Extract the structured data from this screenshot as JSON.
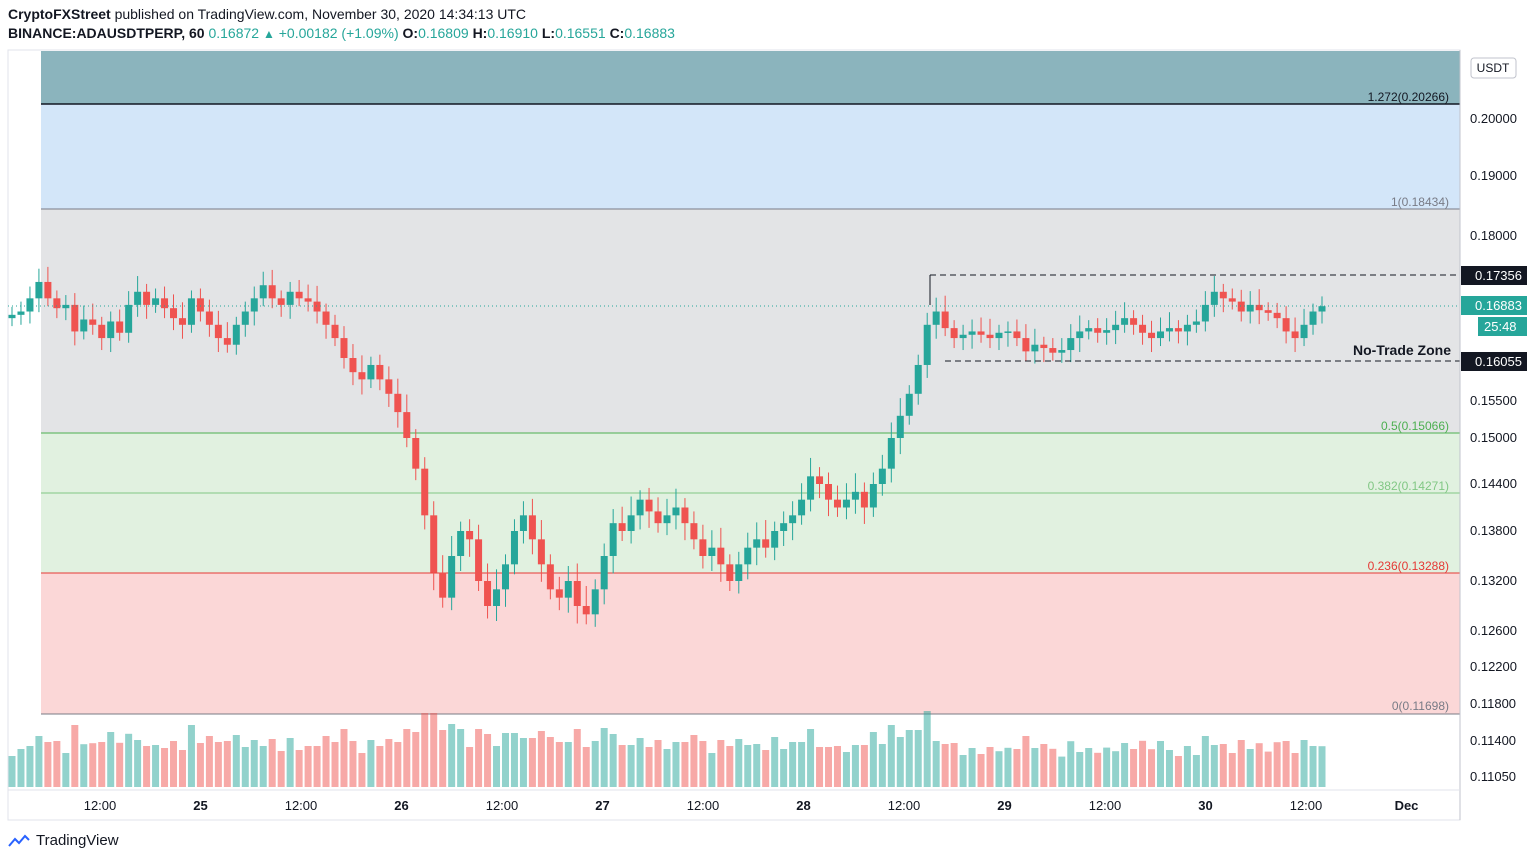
{
  "header": {
    "publisher": "CryptoFXStreet",
    "published_text": "published on TradingView.com, November 30, 2020 14:34:13 UTC",
    "symbol": "BINANCE:ADAUSDTPERP, 60",
    "last": "0.16872",
    "change": "+0.00182 (+1.09%)",
    "o_label": "O:",
    "o": "0.16809",
    "h_label": "H:",
    "h": "0.16910",
    "l_label": "L:",
    "l": "0.16551",
    "c_label": "C:",
    "c": "0.16883"
  },
  "footer": {
    "brand": "TradingView"
  },
  "colors": {
    "up": "#26a69a",
    "down": "#ef5350",
    "zone_top": "#8bb4bd",
    "zone_blue": "#d3e6f9",
    "zone_gray": "#e3e4e6",
    "zone_green": "#e1f1e0",
    "zone_red": "#fbd7d7"
  },
  "chart_data": {
    "type": "candlestick",
    "currency_label": "USDT",
    "y_ticks": [
      "0.20000",
      "0.19000",
      "0.18000",
      "0.15500",
      "0.15000",
      "0.14400",
      "0.13800",
      "0.13200",
      "0.12600",
      "0.12200",
      "0.11800",
      "0.11400",
      "0.11050"
    ],
    "x_ticks": [
      "12:00",
      "25",
      "12:00",
      "26",
      "12:00",
      "27",
      "12:00",
      "28",
      "12:00",
      "29",
      "12:00",
      "30",
      "12:00",
      "Dec"
    ],
    "fib_levels": [
      {
        "label": "1.272(0.20266)",
        "value": 0.20266,
        "color": "#131722"
      },
      {
        "label": "1(0.18434)",
        "value": 0.18434,
        "color": "#787b86"
      },
      {
        "label": "0.5(0.15066)",
        "value": 0.15066,
        "color": "#4caf50"
      },
      {
        "label": "0.382(0.14271)",
        "value": 0.14271,
        "color": "#81c784"
      },
      {
        "label": "0.236(0.13288)",
        "value": 0.13288,
        "color": "#e53935"
      },
      {
        "label": "0(0.11698)",
        "value": 0.11698,
        "color": "#787b86"
      }
    ],
    "price_labels": {
      "range_high": "0.17356",
      "range_low": "0.16055",
      "current": "0.16883",
      "countdown": "25:48"
    },
    "annotation": "No-Trade Zone",
    "candles_close": [
      0.1675,
      0.168,
      0.17,
      0.1725,
      0.17,
      0.1685,
      0.169,
      0.165,
      0.1668,
      0.166,
      0.164,
      0.1665,
      0.1648,
      0.169,
      0.171,
      0.169,
      0.17,
      0.1685,
      0.167,
      0.166,
      0.17,
      0.168,
      0.166,
      0.164,
      0.163,
      0.166,
      0.168,
      0.17,
      0.172,
      0.17,
      0.169,
      0.171,
      0.17,
      0.1695,
      0.168,
      0.166,
      0.164,
      0.161,
      0.159,
      0.158,
      0.16,
      0.158,
      0.156,
      0.1535,
      0.15,
      0.146,
      0.14,
      0.133,
      0.13,
      0.135,
      0.138,
      0.137,
      0.132,
      0.129,
      0.131,
      0.134,
      0.138,
      0.14,
      0.137,
      0.134,
      0.131,
      0.13,
      0.132,
      0.129,
      0.128,
      0.131,
      0.135,
      0.139,
      0.138,
      0.14,
      0.142,
      0.1405,
      0.139,
      0.14,
      0.141,
      0.139,
      0.137,
      0.135,
      0.136,
      0.134,
      0.132,
      0.134,
      0.136,
      0.137,
      0.136,
      0.138,
      0.139,
      0.14,
      0.142,
      0.145,
      0.144,
      0.142,
      0.141,
      0.142,
      0.143,
      0.141,
      0.144,
      0.146,
      0.15,
      0.153,
      0.156,
      0.16,
      0.166,
      0.168,
      0.1655,
      0.164,
      0.1645,
      0.165,
      0.1645,
      0.164,
      0.1648,
      0.165,
      0.164,
      0.162,
      0.163,
      0.1625,
      0.1618,
      0.1622,
      0.164,
      0.165,
      0.1655,
      0.1648,
      0.1652,
      0.166,
      0.167,
      0.166,
      0.1648,
      0.164,
      0.165,
      0.1655,
      0.165,
      0.166,
      0.1665,
      0.169,
      0.171,
      0.17,
      0.1695,
      0.168,
      0.169,
      0.1682,
      0.1678,
      0.167,
      0.165,
      0.164,
      0.166,
      0.168,
      0.1688
    ]
  }
}
